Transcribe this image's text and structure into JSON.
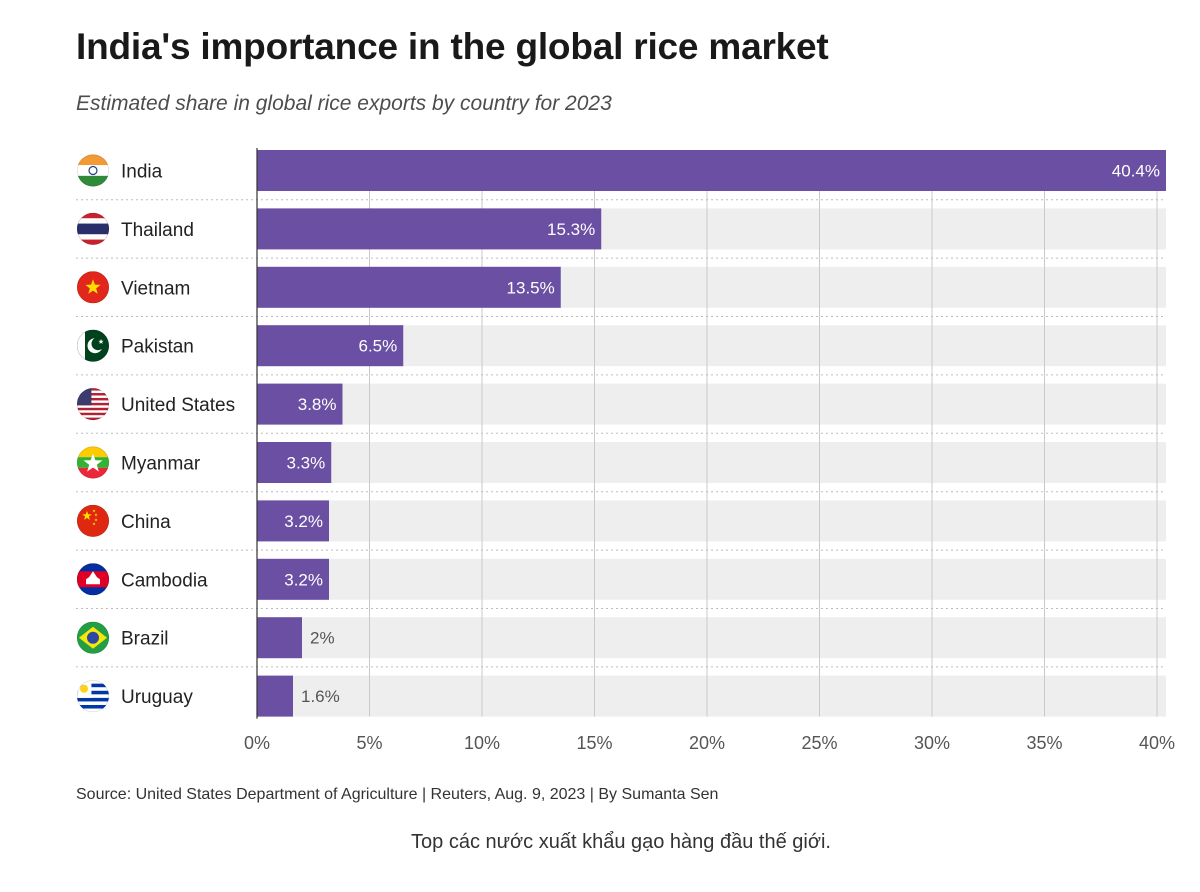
{
  "title": "India's importance in the global rice market",
  "subtitle": "Estimated share in global rice exports by country for 2023",
  "source": "Source: United States Department of Agriculture | Reuters, Aug. 9, 2023 | By Sumanta Sen",
  "caption": "Top các nước xuất khẩu gạo hàng đầu thế giới.",
  "colors": {
    "bar": "#6a4fa3",
    "track": "#eeeeee",
    "label_inside": "#ffffff",
    "label_outside": "#555555"
  },
  "chart_data": {
    "type": "bar",
    "orientation": "horizontal",
    "title": "India's importance in the global rice market",
    "subtitle": "Estimated share in global rice exports by country for 2023",
    "categories": [
      "India",
      "Thailand",
      "Vietnam",
      "Pakistan",
      "United States",
      "Myanmar",
      "China",
      "Cambodia",
      "Brazil",
      "Uruguay"
    ],
    "values": [
      40.4,
      15.3,
      13.5,
      6.5,
      3.8,
      3.3,
      3.2,
      3.2,
      2,
      1.6
    ],
    "value_labels": [
      "40.4%",
      "15.3%",
      "13.5%",
      "6.5%",
      "3.8%",
      "3.3%",
      "3.2%",
      "3.2%",
      "2%",
      "1.6%"
    ],
    "flags": [
      "india-flag-icon",
      "thailand-flag-icon",
      "vietnam-flag-icon",
      "pakistan-flag-icon",
      "united-states-flag-icon",
      "myanmar-flag-icon",
      "china-flag-icon",
      "cambodia-flag-icon",
      "brazil-flag-icon",
      "uruguay-flag-icon"
    ],
    "xlim": [
      0,
      40.4
    ],
    "xticks": [
      0,
      5,
      10,
      15,
      20,
      25,
      30,
      35,
      40
    ],
    "xtick_labels": [
      "0%",
      "5%",
      "10%",
      "15%",
      "20%",
      "25%",
      "30%",
      "35%",
      "40%"
    ],
    "grid": true,
    "legend": "none"
  }
}
